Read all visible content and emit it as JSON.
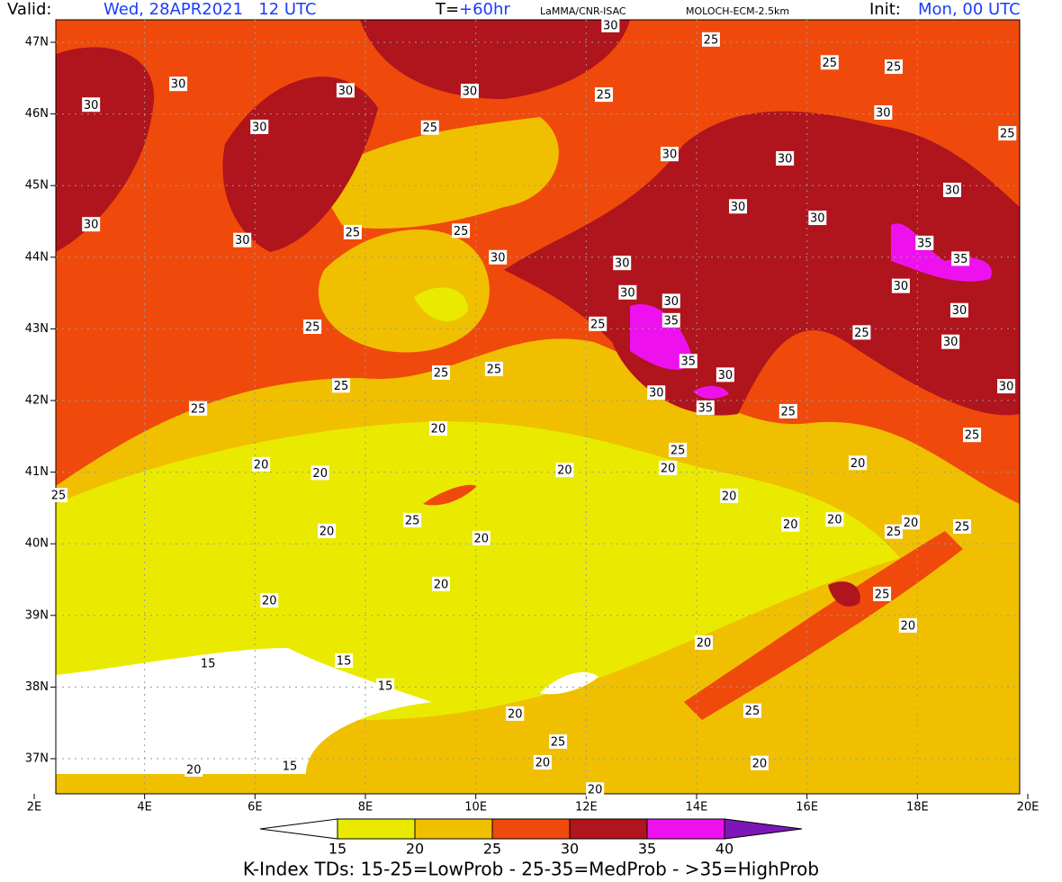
{
  "header": {
    "valid_label": "Valid:",
    "valid": "Wed, 28APR2021   12 UTC",
    "lead_label": "T=",
    "lead": "+60hr",
    "source": "LaMMA/CNR-ISAC",
    "model": "MOLOCH-ECM-2.5km",
    "init_label": "Init:",
    "init": "Mon, 00 UTC"
  },
  "map": {
    "lonlim": [
      2,
      20
    ],
    "latlim": [
      36.5,
      47.3
    ],
    "lon_ticks": [
      {
        "value": 2,
        "label": "2E"
      },
      {
        "value": 4,
        "label": "4E"
      },
      {
        "value": 6,
        "label": "6E"
      },
      {
        "value": 8,
        "label": "8E"
      },
      {
        "value": 10,
        "label": "10E"
      },
      {
        "value": 12,
        "label": "12E"
      },
      {
        "value": 14,
        "label": "14E"
      },
      {
        "value": 16,
        "label": "16E"
      },
      {
        "value": 18,
        "label": "18E"
      },
      {
        "value": 20,
        "label": "20E"
      }
    ],
    "lat_ticks": [
      {
        "value": 37,
        "label": "37N"
      },
      {
        "value": 38,
        "label": "38N"
      },
      {
        "value": 39,
        "label": "39N"
      },
      {
        "value": 40,
        "label": "40N"
      },
      {
        "value": 41,
        "label": "41N"
      },
      {
        "value": 42,
        "label": "42N"
      },
      {
        "value": 43,
        "label": "43N"
      },
      {
        "value": 44,
        "label": "44N"
      },
      {
        "value": 45,
        "label": "45N"
      },
      {
        "value": 46,
        "label": "46N"
      },
      {
        "value": 47,
        "label": "47N"
      }
    ],
    "grid": true
  },
  "colorbar": {
    "levels": [
      15,
      20,
      25,
      30,
      35,
      40
    ],
    "colors": [
      "#ffffff",
      "#eaea00",
      "#f0c000",
      "#ef4a0c",
      "#b0141c",
      "#ee11ee",
      "#7d16b8"
    ]
  },
  "caption": "K-Index TDs: 15-25=LowProb - 25-35=MedProb - >35=HighProb",
  "contour_labels": [
    {
      "value": 30,
      "lon": 3.03,
      "lat": 46.13
    },
    {
      "value": 30,
      "lon": 4.61,
      "lat": 46.42
    },
    {
      "value": 30,
      "lon": 6.08,
      "lat": 45.82
    },
    {
      "value": 30,
      "lon": 7.64,
      "lat": 46.33
    },
    {
      "value": 30,
      "lon": 9.89,
      "lat": 46.32
    },
    {
      "value": 25,
      "lon": 9.17,
      "lat": 45.81
    },
    {
      "value": 25,
      "lon": 12.32,
      "lat": 46.27
    },
    {
      "value": 25,
      "lon": 14.26,
      "lat": 47.04
    },
    {
      "value": 25,
      "lon": 16.41,
      "lat": 46.72
    },
    {
      "value": 25,
      "lon": 17.57,
      "lat": 46.66
    },
    {
      "value": 30,
      "lon": 17.38,
      "lat": 46.02
    },
    {
      "value": 25,
      "lon": 19.63,
      "lat": 45.73
    },
    {
      "value": 30,
      "lon": 13.51,
      "lat": 45.44
    },
    {
      "value": 30,
      "lon": 15.6,
      "lat": 45.38
    },
    {
      "value": 30,
      "lon": 18.63,
      "lat": 44.94
    },
    {
      "value": 30,
      "lon": 3.03,
      "lat": 44.46
    },
    {
      "value": 30,
      "lon": 5.77,
      "lat": 44.24
    },
    {
      "value": 25,
      "lon": 7.77,
      "lat": 44.35
    },
    {
      "value": 25,
      "lon": 9.73,
      "lat": 44.37
    },
    {
      "value": 30,
      "lon": 10.4,
      "lat": 44.0
    },
    {
      "value": 30,
      "lon": 12.65,
      "lat": 43.92
    },
    {
      "value": 30,
      "lon": 14.75,
      "lat": 44.71
    },
    {
      "value": 30,
      "lon": 16.19,
      "lat": 44.55
    },
    {
      "value": 35,
      "lon": 18.13,
      "lat": 44.2
    },
    {
      "value": 35,
      "lon": 18.78,
      "lat": 43.98
    },
    {
      "value": 30,
      "lon": 17.7,
      "lat": 43.6
    },
    {
      "value": 30,
      "lon": 12.75,
      "lat": 43.51
    },
    {
      "value": 30,
      "lon": 13.54,
      "lat": 43.39
    },
    {
      "value": 35,
      "lon": 13.54,
      "lat": 43.12
    },
    {
      "value": 30,
      "lon": 18.76,
      "lat": 43.26
    },
    {
      "value": 25,
      "lon": 12.21,
      "lat": 43.07
    },
    {
      "value": 25,
      "lon": 7.04,
      "lat": 43.03
    },
    {
      "value": 25,
      "lon": 16.99,
      "lat": 42.95
    },
    {
      "value": 30,
      "lon": 18.6,
      "lat": 42.82
    },
    {
      "value": 35,
      "lon": 13.85,
      "lat": 42.55
    },
    {
      "value": 30,
      "lon": 14.52,
      "lat": 42.36
    },
    {
      "value": 25,
      "lon": 10.33,
      "lat": 42.44
    },
    {
      "value": 25,
      "lon": 9.37,
      "lat": 42.39
    },
    {
      "value": 25,
      "lon": 7.56,
      "lat": 42.21
    },
    {
      "value": 25,
      "lon": 4.97,
      "lat": 41.89
    },
    {
      "value": 30,
      "lon": 13.27,
      "lat": 42.11
    },
    {
      "value": 35,
      "lon": 14.16,
      "lat": 41.9
    },
    {
      "value": 25,
      "lon": 15.66,
      "lat": 41.85
    },
    {
      "value": 30,
      "lon": 19.61,
      "lat": 42.2
    },
    {
      "value": 25,
      "lon": 18.99,
      "lat": 41.52
    },
    {
      "value": 20,
      "lon": 9.32,
      "lat": 41.61
    },
    {
      "value": 25,
      "lon": 13.66,
      "lat": 41.31
    },
    {
      "value": 20,
      "lon": 6.11,
      "lat": 41.11
    },
    {
      "value": 20,
      "lon": 7.18,
      "lat": 40.99
    },
    {
      "value": 20,
      "lon": 11.61,
      "lat": 41.03
    },
    {
      "value": 20,
      "lon": 13.48,
      "lat": 41.06
    },
    {
      "value": 20,
      "lon": 16.92,
      "lat": 41.13
    },
    {
      "value": 25,
      "lon": 2.44,
      "lat": 40.68
    },
    {
      "value": 20,
      "lon": 14.59,
      "lat": 40.67
    },
    {
      "value": 25,
      "lon": 8.85,
      "lat": 40.33
    },
    {
      "value": 20,
      "lon": 7.3,
      "lat": 40.18
    },
    {
      "value": 20,
      "lon": 10.1,
      "lat": 40.08
    },
    {
      "value": 20,
      "lon": 15.7,
      "lat": 40.27
    },
    {
      "value": 20,
      "lon": 16.5,
      "lat": 40.34
    },
    {
      "value": 20,
      "lon": 17.88,
      "lat": 40.3
    },
    {
      "value": 25,
      "lon": 17.57,
      "lat": 40.17
    },
    {
      "value": 25,
      "lon": 18.81,
      "lat": 40.24
    },
    {
      "value": 20,
      "lon": 9.37,
      "lat": 39.44
    },
    {
      "value": 20,
      "lon": 6.26,
      "lat": 39.21
    },
    {
      "value": 25,
      "lon": 17.36,
      "lat": 39.3
    },
    {
      "value": 20,
      "lon": 17.83,
      "lat": 38.86
    },
    {
      "value": 20,
      "lon": 14.13,
      "lat": 38.62
    },
    {
      "value": 15,
      "lon": 5.15,
      "lat": 38.33
    },
    {
      "value": 15,
      "lon": 7.61,
      "lat": 38.37
    },
    {
      "value": 15,
      "lon": 8.36,
      "lat": 38.02
    },
    {
      "value": 20,
      "lon": 10.71,
      "lat": 37.63
    },
    {
      "value": 25,
      "lon": 15.01,
      "lat": 37.67
    },
    {
      "value": 25,
      "lon": 11.49,
      "lat": 37.24
    },
    {
      "value": 15,
      "lon": 6.63,
      "lat": 36.9
    },
    {
      "value": 20,
      "lon": 4.89,
      "lat": 36.85
    },
    {
      "value": 20,
      "lon": 11.21,
      "lat": 36.95
    },
    {
      "value": 20,
      "lon": 15.14,
      "lat": 36.94
    },
    {
      "value": 20,
      "lon": 12.16,
      "lat": 36.57
    },
    {
      "value": 30,
      "lon": 12.44,
      "lat": 47.24
    }
  ]
}
